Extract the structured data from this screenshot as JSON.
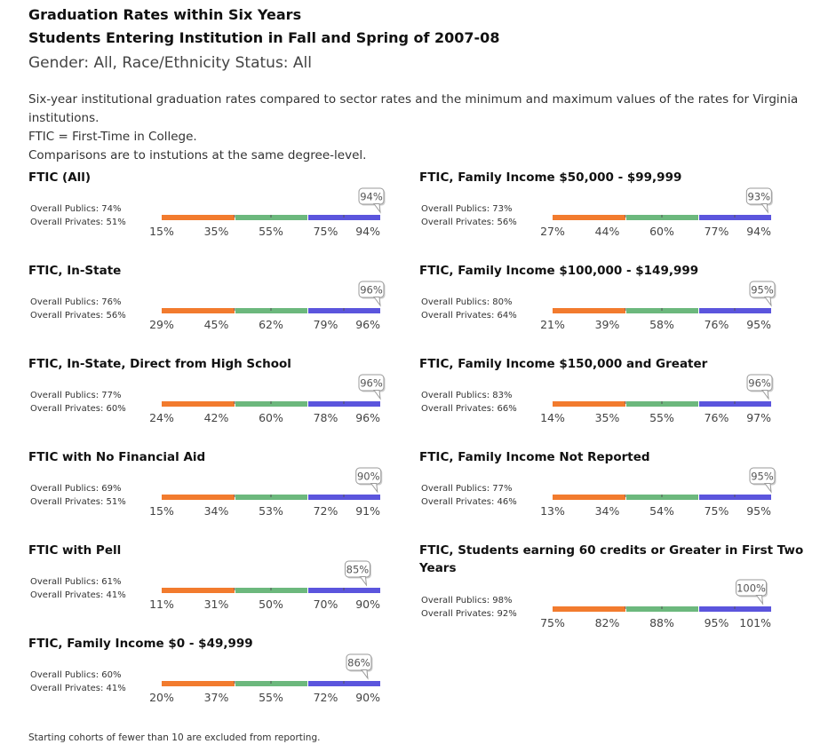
{
  "header": {
    "title1": "Graduation Rates within Six Years",
    "title2": "Students Entering Institution in Fall and Spring of 2007-08",
    "filter": "Gender: All, Race/Ethnicity Status: All",
    "desc_line1": "Six-year institutional graduation rates compared to sector rates and the minimum and maximum values of the rates for Virginia institutions.",
    "desc_line2": "FTIC = First-Time in College.",
    "desc_line3": "Comparisons are to instutions at the same degree-level."
  },
  "footnote": "Starting cohorts of fewer than 10 are excluded from reporting.",
  "colors": {
    "segment1": "#f27b2e",
    "segment2": "#6cb87d",
    "segment3": "#5b55dd",
    "callout_border": "#999999"
  },
  "chart_data": [
    {
      "type": "bullet",
      "title": "FTIC (All)",
      "publics": "Overall Publics: 74%",
      "privates": "Overall Privates: 51%",
      "ticks": [
        "15%",
        "35%",
        "55%",
        "75%",
        "94%"
      ],
      "axis_min": 15,
      "axis_max": 94,
      "value": 94,
      "value_label": "94%"
    },
    {
      "type": "bullet",
      "title": "FTIC, Family Income $50,000 - $99,999",
      "publics": "Overall Publics: 73%",
      "privates": "Overall Privates: 56%",
      "ticks": [
        "27%",
        "44%",
        "60%",
        "77%",
        "94%"
      ],
      "axis_min": 27,
      "axis_max": 94,
      "value": 93,
      "value_label": "93%"
    },
    {
      "type": "bullet",
      "title": "FTIC, In-State",
      "publics": "Overall Publics: 76%",
      "privates": "Overall Privates: 56%",
      "ticks": [
        "29%",
        "45%",
        "62%",
        "79%",
        "96%"
      ],
      "axis_min": 29,
      "axis_max": 96,
      "value": 96,
      "value_label": "96%"
    },
    {
      "type": "bullet",
      "title": "FTIC, Family Income $100,000 - $149,999",
      "publics": "Overall Publics: 80%",
      "privates": "Overall Privates: 64%",
      "ticks": [
        "21%",
        "39%",
        "58%",
        "76%",
        "95%"
      ],
      "axis_min": 21,
      "axis_max": 95,
      "value": 95,
      "value_label": "95%"
    },
    {
      "type": "bullet",
      "title": "FTIC, In-State, Direct from High School",
      "publics": "Overall Publics: 77%",
      "privates": "Overall Privates: 60%",
      "ticks": [
        "24%",
        "42%",
        "60%",
        "78%",
        "96%"
      ],
      "axis_min": 24,
      "axis_max": 96,
      "value": 96,
      "value_label": "96%"
    },
    {
      "type": "bullet",
      "title": "FTIC, Family Income $150,000 and Greater",
      "publics": "Overall Publics: 83%",
      "privates": "Overall Privates: 66%",
      "ticks": [
        "14%",
        "35%",
        "55%",
        "76%",
        "97%"
      ],
      "axis_min": 14,
      "axis_max": 97,
      "value": 96,
      "value_label": "96%"
    },
    {
      "type": "bullet",
      "title": "FTIC with No Financial Aid",
      "publics": "Overall Publics: 69%",
      "privates": "Overall Privates: 51%",
      "ticks": [
        "15%",
        "34%",
        "53%",
        "72%",
        "91%"
      ],
      "axis_min": 15,
      "axis_max": 91,
      "value": 90,
      "value_label": "90%"
    },
    {
      "type": "bullet",
      "title": "FTIC, Family Income Not Reported",
      "publics": "Overall Publics: 77%",
      "privates": "Overall Privates: 46%",
      "ticks": [
        "13%",
        "34%",
        "54%",
        "75%",
        "95%"
      ],
      "axis_min": 13,
      "axis_max": 95,
      "value": 95,
      "value_label": "95%"
    },
    {
      "type": "bullet",
      "title": "FTIC with Pell",
      "publics": "Overall Publics: 61%",
      "privates": "Overall Privates: 41%",
      "ticks": [
        "11%",
        "31%",
        "50%",
        "70%",
        "90%"
      ],
      "axis_min": 11,
      "axis_max": 90,
      "value": 85,
      "value_label": "85%"
    },
    {
      "type": "bullet",
      "title": "FTIC, Students earning 60 credits or Greater in First Two Years",
      "publics": "Overall Publics: 98%",
      "privates": "Overall Privates: 92%",
      "ticks": [
        "75%",
        "82%",
        "88%",
        "95%",
        "101%"
      ],
      "axis_min": 75,
      "axis_max": 101,
      "value": 100,
      "value_label": "100%"
    },
    {
      "type": "bullet",
      "title": "FTIC, Family Income $0 - $49,999",
      "publics": "Overall Publics: 60%",
      "privates": "Overall Privates: 41%",
      "ticks": [
        "20%",
        "37%",
        "55%",
        "72%",
        "90%"
      ],
      "axis_min": 20,
      "axis_max": 90,
      "value": 86,
      "value_label": "86%"
    }
  ]
}
